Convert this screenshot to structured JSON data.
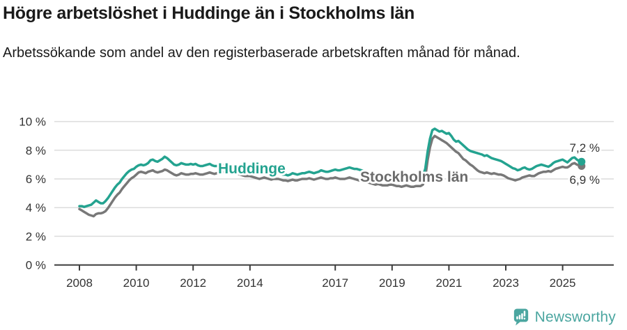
{
  "title": "Högre arbetslöshet i Huddinge än i Stockholms län",
  "subtitle": "Arbetssökande som andel av den registerbaserade arbetskraften månad för månad.",
  "footer": {
    "brand": "Newsworthy",
    "logo_icon": "newsworthy-barchart-pin-icon"
  },
  "colors": {
    "huddinge": "#24a390",
    "stockholm": "#787878",
    "stockholm_label": "#6b6b6b",
    "grid": "#dcdcdc",
    "axis": "#3c3c3c",
    "tick_text": "#333333",
    "brand": "#4ba6a0"
  },
  "chart_data": {
    "type": "line",
    "title": "Högre arbetslöshet i Huddinge än i Stockholms län",
    "subtitle": "Arbetssökande som andel av den registerbaserade arbetskraften månad för månad.",
    "frequency": "monthly",
    "start": {
      "year": 2008,
      "month": 1
    },
    "end": {
      "year": 2025,
      "month": 9
    },
    "ylim": [
      0,
      10
    ],
    "grid": true,
    "legend": "inline-labels",
    "yticks": [
      {
        "value": 0,
        "label": "0 %"
      },
      {
        "value": 2,
        "label": "2 %"
      },
      {
        "value": 4,
        "label": "4 %"
      },
      {
        "value": 6,
        "label": "6 %"
      },
      {
        "value": 8,
        "label": "8 %"
      },
      {
        "value": 10,
        "label": "10 %"
      }
    ],
    "xticks": [
      2008,
      2010,
      2012,
      2014,
      2017,
      2019,
      2021,
      2023,
      2025
    ],
    "series": [
      {
        "name": "Huddinge",
        "color": "#24a390",
        "end_label": "7,2 %",
        "end_value": 7.2,
        "values": [
          4.1,
          4.1,
          4.05,
          4.1,
          4.15,
          4.2,
          4.35,
          4.5,
          4.4,
          4.3,
          4.3,
          4.45,
          4.65,
          4.9,
          5.15,
          5.4,
          5.6,
          5.75,
          6.0,
          6.2,
          6.4,
          6.55,
          6.65,
          6.7,
          6.85,
          6.95,
          7.0,
          6.95,
          7.0,
          7.1,
          7.3,
          7.35,
          7.25,
          7.2,
          7.3,
          7.4,
          7.55,
          7.45,
          7.3,
          7.15,
          7.0,
          6.95,
          7.0,
          7.1,
          7.05,
          7.0,
          7.0,
          7.05,
          7.0,
          7.05,
          6.95,
          6.9,
          6.9,
          6.95,
          7.0,
          7.05,
          6.95,
          6.9,
          6.9,
          6.95,
          7.0,
          6.95,
          6.9,
          6.85,
          6.8,
          6.85,
          6.9,
          6.85,
          6.8,
          6.75,
          6.7,
          6.7,
          6.7,
          6.65,
          6.6,
          6.55,
          6.5,
          6.55,
          6.6,
          6.55,
          6.5,
          6.45,
          6.45,
          6.4,
          6.4,
          6.35,
          6.3,
          6.3,
          6.25,
          6.3,
          6.4,
          6.35,
          6.3,
          6.35,
          6.4,
          6.4,
          6.45,
          6.5,
          6.45,
          6.4,
          6.45,
          6.5,
          6.6,
          6.55,
          6.5,
          6.5,
          6.55,
          6.6,
          6.65,
          6.6,
          6.6,
          6.65,
          6.7,
          6.75,
          6.8,
          6.75,
          6.7,
          6.7,
          6.65,
          6.6,
          6.55,
          6.5,
          6.45,
          6.4,
          6.35,
          6.3,
          6.35,
          6.3,
          6.25,
          6.2,
          6.2,
          6.25,
          6.25,
          6.2,
          6.15,
          6.1,
          6.05,
          6.1,
          6.15,
          6.1,
          6.05,
          6.0,
          6.05,
          6.1,
          6.1,
          6.2,
          6.7,
          7.9,
          8.8,
          9.4,
          9.5,
          9.4,
          9.3,
          9.35,
          9.25,
          9.15,
          9.2,
          9.0,
          8.75,
          8.6,
          8.65,
          8.5,
          8.35,
          8.2,
          8.05,
          7.95,
          7.9,
          7.85,
          7.8,
          7.75,
          7.7,
          7.6,
          7.65,
          7.55,
          7.45,
          7.4,
          7.35,
          7.3,
          7.25,
          7.15,
          7.05,
          6.95,
          6.85,
          6.75,
          6.7,
          6.6,
          6.65,
          6.75,
          6.8,
          6.7,
          6.65,
          6.7,
          6.8,
          6.9,
          6.95,
          7.0,
          6.95,
          6.9,
          6.85,
          6.95,
          7.1,
          7.2,
          7.25,
          7.3,
          7.35,
          7.25,
          7.15,
          7.3,
          7.45,
          7.5,
          7.35,
          7.25,
          7.2
        ]
      },
      {
        "name": "Stockholms län",
        "color": "#787878",
        "end_label": "6,9 %",
        "end_value": 6.9,
        "values": [
          3.9,
          3.8,
          3.7,
          3.6,
          3.5,
          3.45,
          3.4,
          3.55,
          3.6,
          3.6,
          3.65,
          3.75,
          3.95,
          4.2,
          4.45,
          4.7,
          4.9,
          5.05,
          5.3,
          5.5,
          5.7,
          5.9,
          6.05,
          6.15,
          6.3,
          6.45,
          6.5,
          6.45,
          6.4,
          6.5,
          6.55,
          6.6,
          6.5,
          6.45,
          6.5,
          6.55,
          6.65,
          6.6,
          6.5,
          6.4,
          6.3,
          6.25,
          6.3,
          6.4,
          6.35,
          6.3,
          6.3,
          6.35,
          6.35,
          6.4,
          6.35,
          6.3,
          6.3,
          6.35,
          6.4,
          6.45,
          6.4,
          6.35,
          6.4,
          6.45,
          6.5,
          6.5,
          6.45,
          6.4,
          6.35,
          6.4,
          6.4,
          6.35,
          6.3,
          6.25,
          6.2,
          6.2,
          6.2,
          6.15,
          6.1,
          6.05,
          6.0,
          6.05,
          6.1,
          6.05,
          6.0,
          5.95,
          6.0,
          6.0,
          6.0,
          5.95,
          5.9,
          5.9,
          5.85,
          5.9,
          5.95,
          5.9,
          5.9,
          5.95,
          6.0,
          6.0,
          6.0,
          6.05,
          6.0,
          5.95,
          6.0,
          6.05,
          6.1,
          6.05,
          6.0,
          6.0,
          6.05,
          6.05,
          6.1,
          6.05,
          6.0,
          6.0,
          6.0,
          6.05,
          6.1,
          6.05,
          6.0,
          5.95,
          5.9,
          5.9,
          5.85,
          5.8,
          5.75,
          5.7,
          5.65,
          5.6,
          5.65,
          5.6,
          5.55,
          5.55,
          5.55,
          5.6,
          5.6,
          5.55,
          5.5,
          5.5,
          5.45,
          5.5,
          5.55,
          5.5,
          5.45,
          5.45,
          5.5,
          5.5,
          5.5,
          5.6,
          6.1,
          7.3,
          8.2,
          8.8,
          9.0,
          8.9,
          8.8,
          8.7,
          8.6,
          8.5,
          8.35,
          8.2,
          8.05,
          7.9,
          7.8,
          7.6,
          7.4,
          7.3,
          7.15,
          7.0,
          6.9,
          6.75,
          6.6,
          6.5,
          6.45,
          6.4,
          6.45,
          6.4,
          6.35,
          6.4,
          6.35,
          6.3,
          6.3,
          6.25,
          6.15,
          6.05,
          6.0,
          5.95,
          5.9,
          5.95,
          6.0,
          6.1,
          6.15,
          6.2,
          6.25,
          6.2,
          6.2,
          6.3,
          6.4,
          6.45,
          6.5,
          6.5,
          6.55,
          6.5,
          6.6,
          6.7,
          6.75,
          6.8,
          6.85,
          6.8,
          6.8,
          6.9,
          7.05,
          7.1,
          7.0,
          6.95,
          6.9
        ]
      }
    ]
  }
}
